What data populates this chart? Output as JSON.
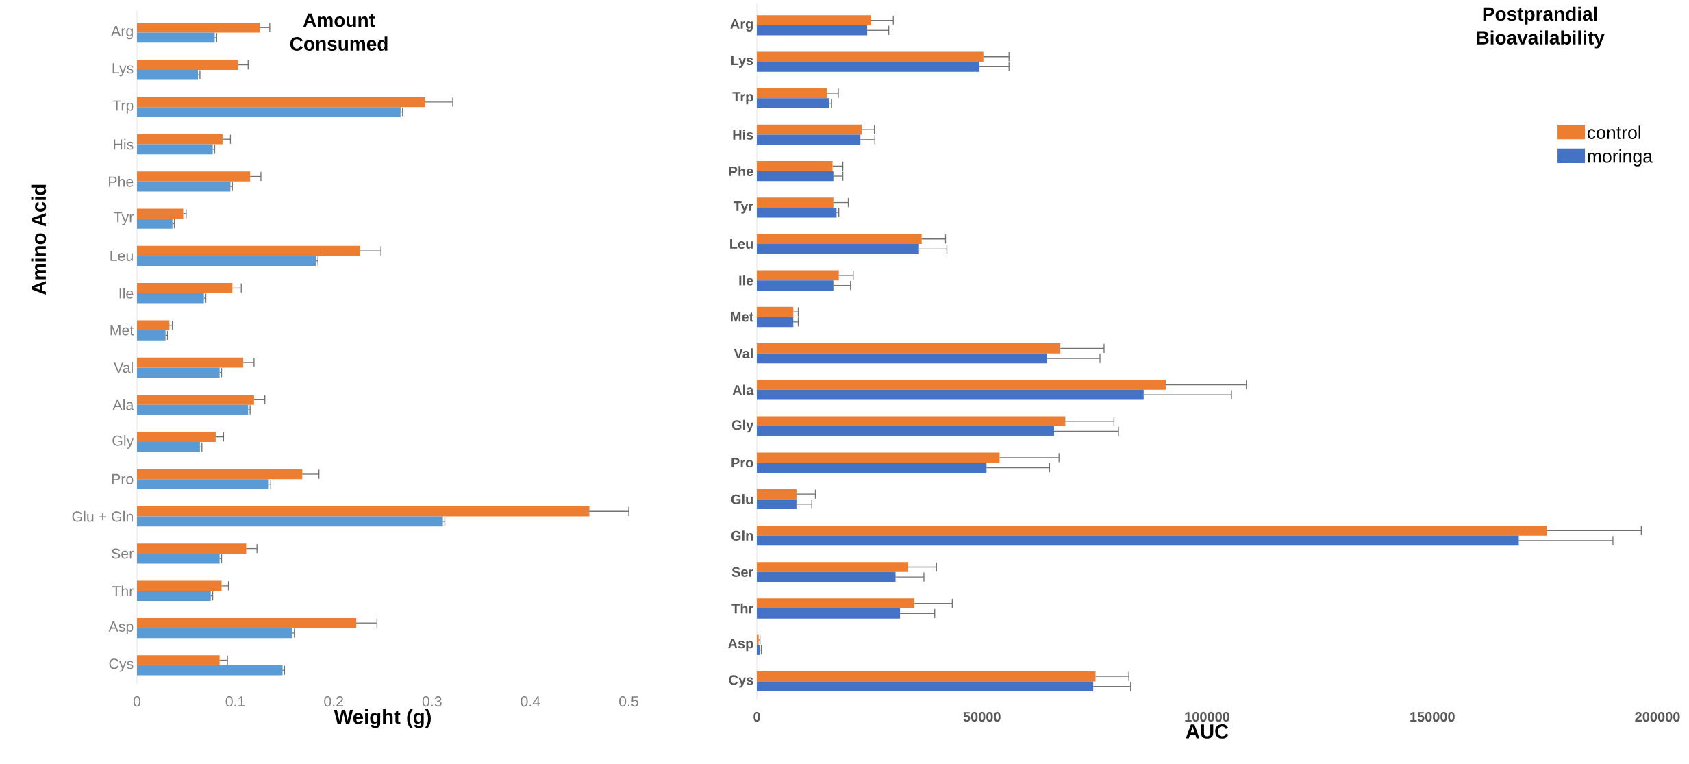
{
  "chart_data": [
    {
      "type": "bar",
      "orientation": "horizontal",
      "title": "Amount Consumed",
      "xlabel": "Weight (g)",
      "ylabel": "Amino Acid",
      "categories": [
        "Arg",
        "Lys",
        "Trp",
        "His",
        "Phe",
        "Tyr",
        "Leu",
        "Ile",
        "Met",
        "Val",
        "Ala",
        "Gly",
        "Pro",
        "Glu + Gln",
        "Ser",
        "Thr",
        "Asp",
        "Cys"
      ],
      "xlim": [
        0,
        0.5
      ],
      "xticks": [
        0,
        0.1,
        0.2,
        0.3,
        0.4,
        0.5
      ],
      "series": [
        {
          "color": "#ed7d31",
          "values": [
            0.125,
            0.103,
            0.293,
            0.087,
            0.115,
            0.047,
            0.227,
            0.097,
            0.033,
            0.108,
            0.119,
            0.08,
            0.168,
            0.46,
            0.111,
            0.086,
            0.223,
            0.084
          ],
          "errors": [
            0.01,
            0.01,
            0.028,
            0.008,
            0.011,
            0.003,
            0.021,
            0.009,
            0.003,
            0.011,
            0.011,
            0.008,
            0.017,
            0.04,
            0.011,
            0.007,
            0.021,
            0.008
          ]
        },
        {
          "color": "#5b9bd5",
          "values": [
            0.079,
            0.062,
            0.268,
            0.077,
            0.095,
            0.036,
            0.182,
            0.068,
            0.029,
            0.084,
            0.113,
            0.064,
            0.134,
            0.311,
            0.084,
            0.075,
            0.158,
            0.148
          ],
          "errors": [
            0.002,
            0.002,
            0.002,
            0.002,
            0.002,
            0.002,
            0.002,
            0.002,
            0.002,
            0.002,
            0.002,
            0.002,
            0.002,
            0.002,
            0.002,
            0.002,
            0.002,
            0.002
          ]
        }
      ]
    },
    {
      "type": "bar",
      "orientation": "horizontal",
      "title": "Postprandial Bioavailability",
      "xlabel": "AUC",
      "legend": "top right",
      "categories": [
        "Arg",
        "Lys",
        "Trp",
        "His",
        "Phe",
        "Tyr",
        "Leu",
        "Ile",
        "Met",
        "Val",
        "Ala",
        "Gly",
        "Pro",
        "Glu",
        "Gln",
        "Ser",
        "Thr",
        "Asp",
        "Cys"
      ],
      "xlim": [
        0,
        200000
      ],
      "xticks": [
        0,
        50000,
        100000,
        150000,
        200000
      ],
      "series": [
        {
          "name": "control",
          "color": "#ed7d31",
          "values": [
            25400,
            50300,
            15600,
            23300,
            16800,
            17000,
            36600,
            18200,
            8100,
            67400,
            90800,
            68500,
            53900,
            8800,
            175400,
            33600,
            35000,
            400,
            75200
          ],
          "errors": [
            4900,
            5700,
            2500,
            2800,
            2300,
            3300,
            5300,
            3200,
            1100,
            9700,
            17900,
            10800,
            13200,
            4200,
            21000,
            6300,
            8400,
            300,
            7400
          ]
        },
        {
          "name": "moringa",
          "color": "#4472c4",
          "values": [
            24500,
            49400,
            16100,
            23000,
            17000,
            17700,
            36000,
            17000,
            8100,
            64400,
            85900,
            66000,
            51000,
            8800,
            169200,
            30800,
            31800,
            700,
            74700
          ],
          "errors": [
            4800,
            6600,
            500,
            3200,
            2100,
            500,
            6200,
            3800,
            1100,
            11800,
            19500,
            14300,
            14000,
            3400,
            20900,
            6300,
            7700,
            300,
            8300
          ]
        }
      ]
    }
  ]
}
